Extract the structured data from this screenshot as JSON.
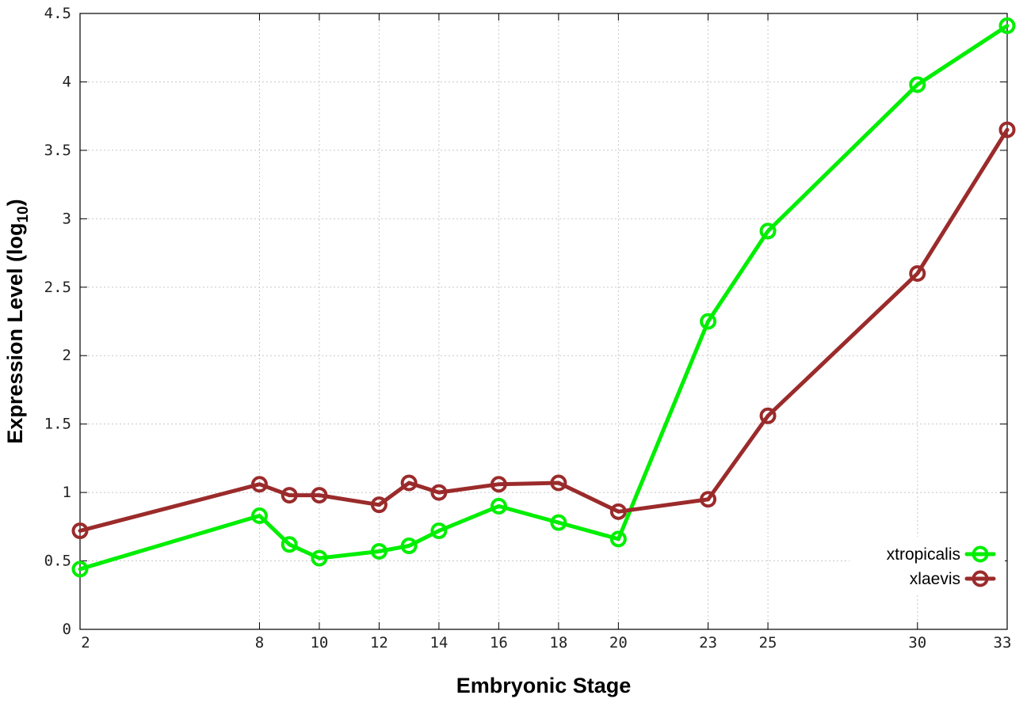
{
  "chart_data": {
    "type": "line",
    "xlabel": "Embryonic Stage",
    "ylabel": "Expression Level (log",
    "ylabel_subscript": "10",
    "ylabel_suffix": ")",
    "x": [
      2,
      8,
      9,
      10,
      12,
      13,
      14,
      16,
      18,
      20,
      23,
      25,
      30,
      33
    ],
    "xticks": [
      "2",
      "8",
      "10",
      "12",
      "14",
      "16",
      "18",
      "20",
      "23",
      "25",
      "30",
      "33"
    ],
    "xtick_values": [
      2,
      8,
      10,
      12,
      14,
      16,
      18,
      20,
      23,
      25,
      30,
      33
    ],
    "yticks": [
      "0",
      "0.5",
      "1",
      "1.5",
      "2",
      "2.5",
      "3",
      "3.5",
      "4",
      "4.5"
    ],
    "ytick_values": [
      0,
      0.5,
      1,
      1.5,
      2,
      2.5,
      3,
      3.5,
      4,
      4.5
    ],
    "xlim": [
      2,
      33
    ],
    "ylim": [
      0,
      4.5
    ],
    "grid": true,
    "legend_position": "bottom-right",
    "series": [
      {
        "name": "xtropicalis",
        "color": "#00ee00",
        "values": [
          0.44,
          0.83,
          0.62,
          0.52,
          0.57,
          0.61,
          0.72,
          0.9,
          0.78,
          0.66,
          2.25,
          2.91,
          3.98,
          4.41
        ]
      },
      {
        "name": "xlaevis",
        "color": "#9b2b2b",
        "values": [
          0.72,
          1.06,
          0.98,
          0.98,
          0.91,
          1.07,
          1.0,
          1.06,
          1.07,
          0.86,
          0.95,
          1.56,
          2.6,
          3.65
        ]
      }
    ]
  }
}
